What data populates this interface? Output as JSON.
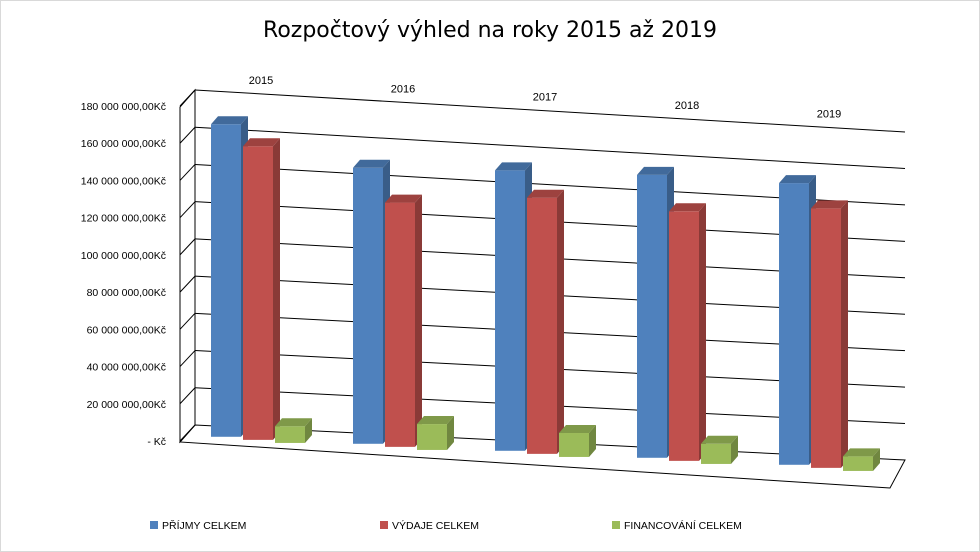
{
  "chart_data": {
    "type": "bar",
    "title": "Rozpočtový výhled na roky 2015 až 2019",
    "categories": [
      "2015",
      "2016",
      "2017",
      "2018",
      "2019"
    ],
    "series": [
      {
        "name": "PŘÍJMY CELKEM",
        "color": "#4f81bd",
        "values": [
          168000000,
          149000000,
          152000000,
          154000000,
          154000000
        ]
      },
      {
        "name": "VÝDAJE CELKEM",
        "color": "#c0504d",
        "values": [
          158000000,
          132000000,
          139000000,
          136000000,
          142000000
        ]
      },
      {
        "name": "FINANCOVÁNÍ CELKEM",
        "color": "#9bbb59",
        "values": [
          9000000,
          14000000,
          13000000,
          11000000,
          8000000
        ]
      }
    ],
    "y_ticks": [
      0,
      20000000,
      40000000,
      60000000,
      80000000,
      100000000,
      120000000,
      140000000,
      160000000,
      180000000
    ],
    "y_tick_labels": [
      "-  Kč",
      "20 000 000,00Kč",
      "40 000 000,00Kč",
      "60 000 000,00Kč",
      "80 000 000,00Kč",
      "100 000 000,00Kč",
      "120 000 000,00Kč",
      "140 000 000,00Kč",
      "160 000 000,00Kč",
      "180 000 000,00Kč"
    ],
    "ylim": [
      0,
      180000000
    ],
    "grid": true,
    "legend_position": "bottom"
  }
}
